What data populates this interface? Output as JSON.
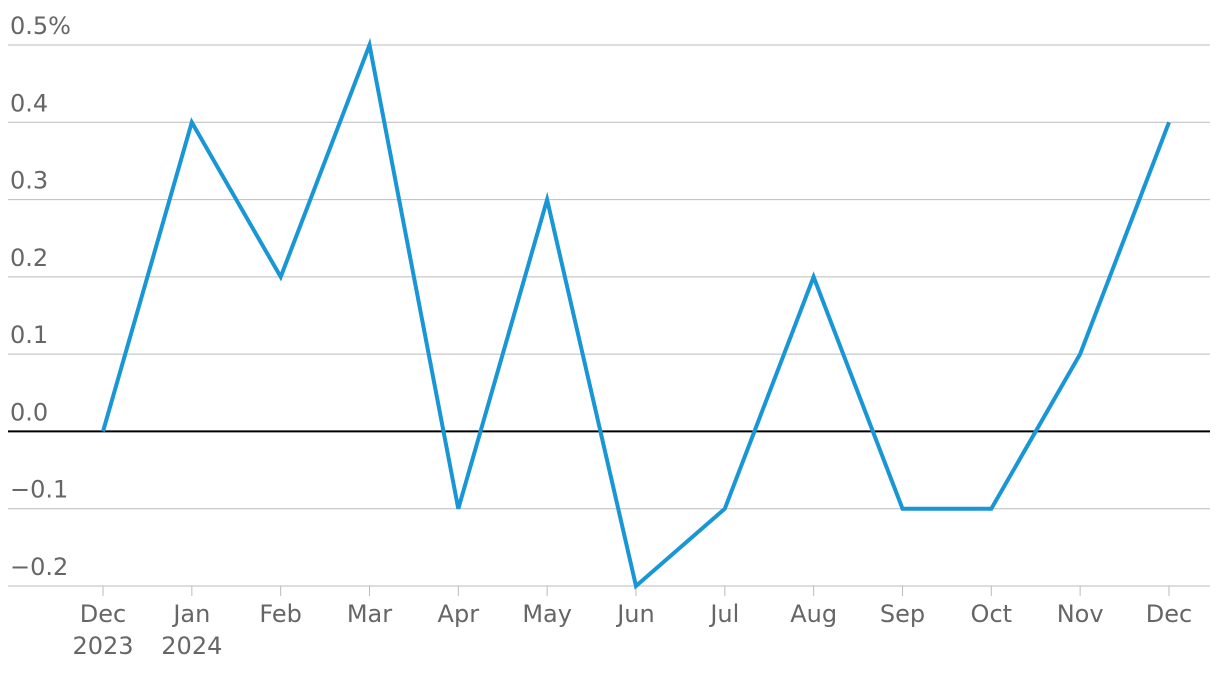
{
  "chart_data": {
    "type": "line",
    "categories": [
      "Dec 2023",
      "Jan 2024",
      "Feb",
      "Mar",
      "Apr",
      "May",
      "Jun",
      "Jul",
      "Aug",
      "Sep",
      "Oct",
      "Nov",
      "Dec"
    ],
    "series": [
      {
        "color": "#1996d5",
        "values": [
          0,
          0.4,
          0.2,
          0.5,
          -0.1,
          0.3,
          -0.2,
          -0.1,
          0.2,
          -0.1,
          -0.1,
          0.1,
          0.4
        ]
      }
    ],
    "ylim": [
      -0.2,
      0.5
    ],
    "yticks": [
      {
        "value": -0.2,
        "label": "−0.2"
      },
      {
        "value": -0.1,
        "label": "−0.1"
      },
      {
        "value": 0,
        "label": "0.0"
      },
      0.1,
      0.2,
      0.3,
      0.4,
      {
        "value": 0.5,
        "label": "0.5%"
      }
    ],
    "grid": true
  }
}
